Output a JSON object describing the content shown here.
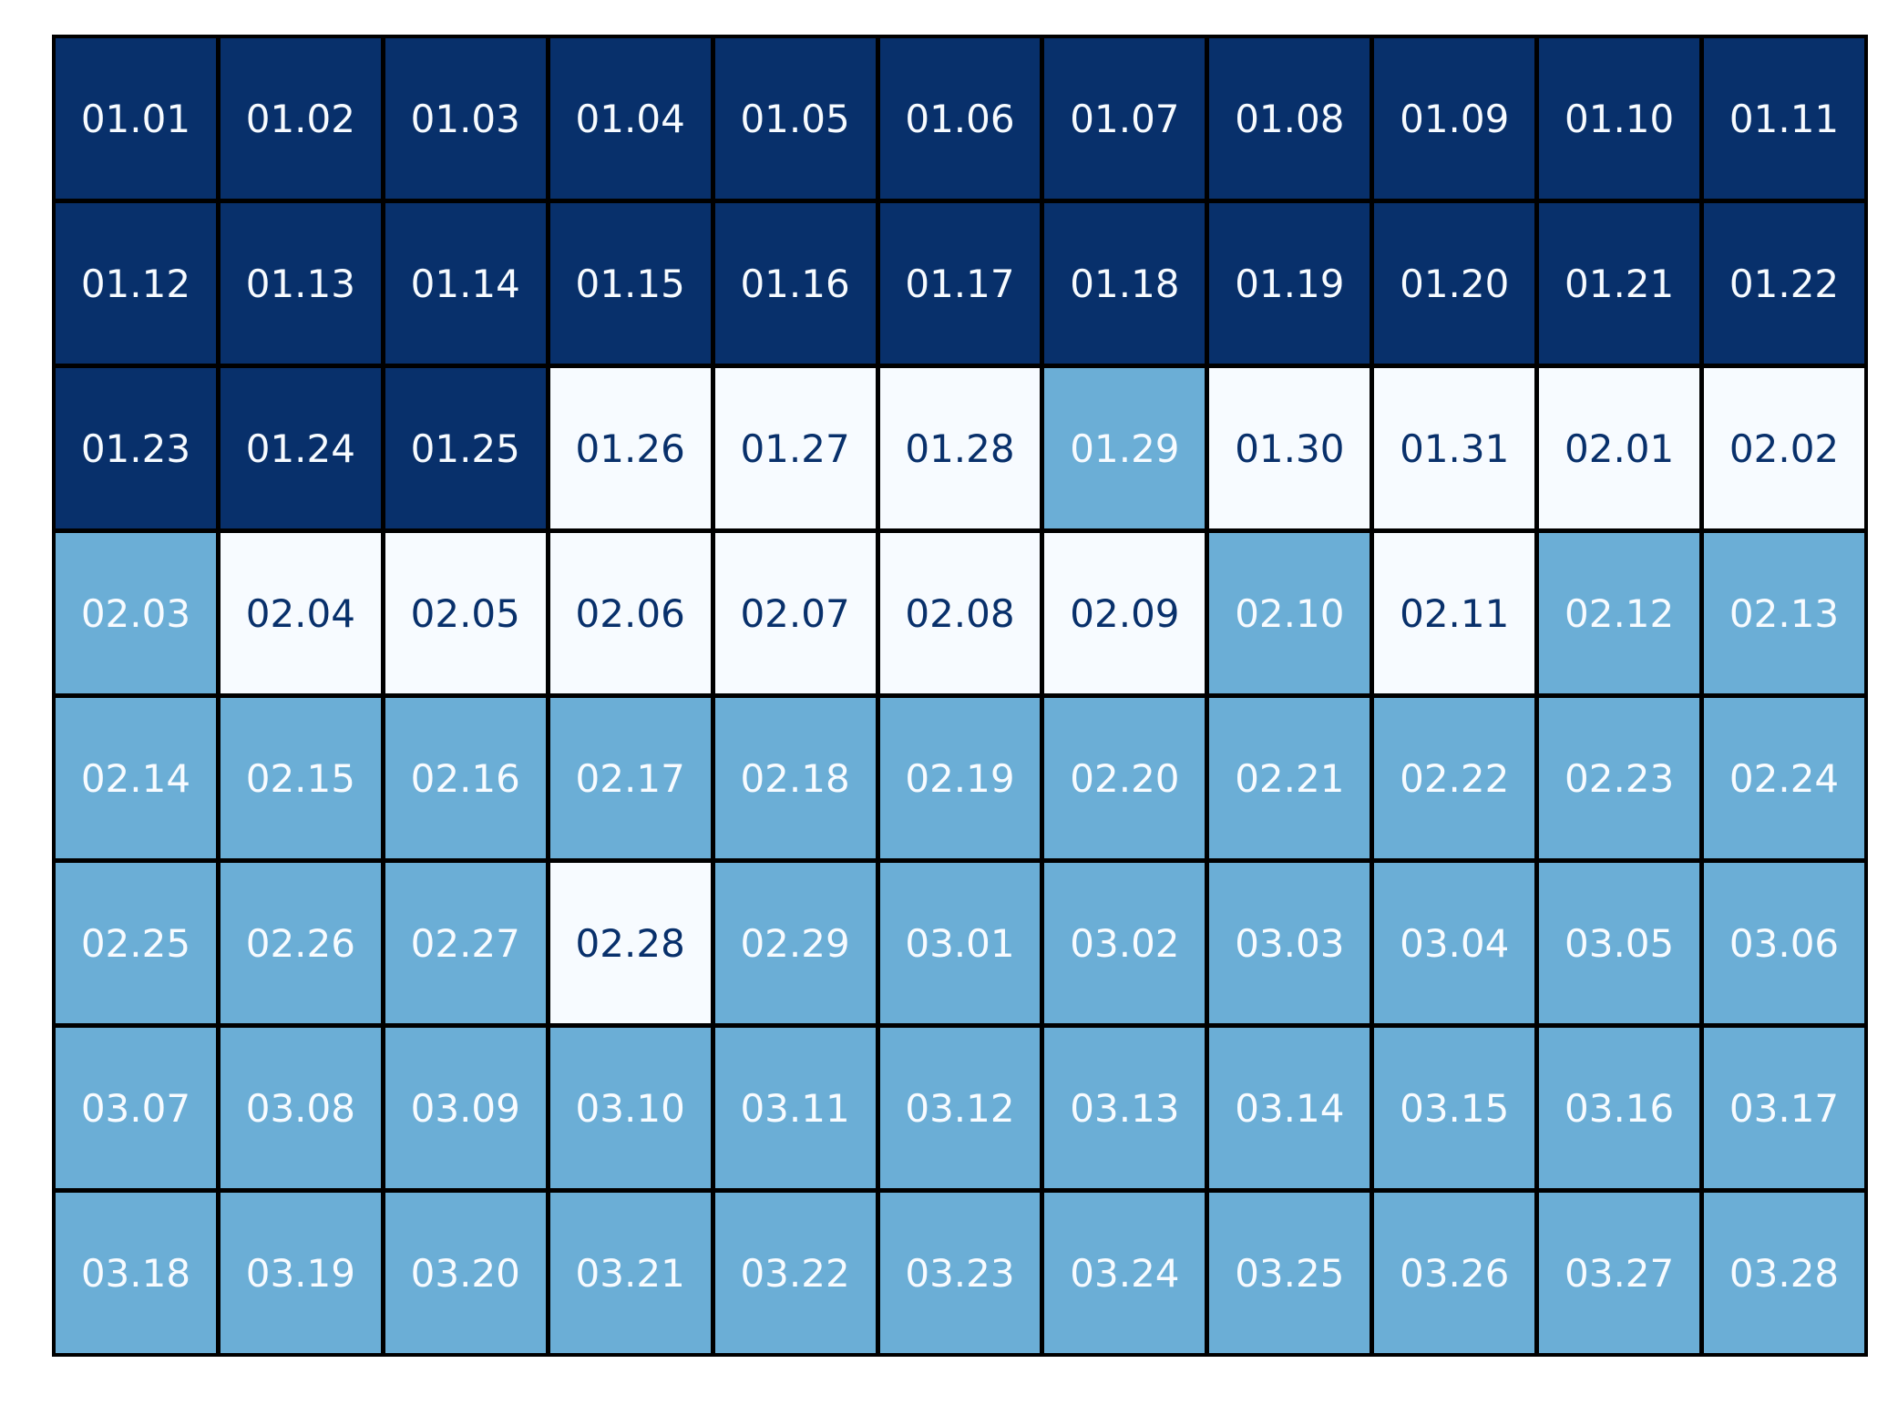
{
  "chart_data": {
    "type": "heatmap",
    "title": "",
    "xlabel": "",
    "ylabel": "",
    "rows": 8,
    "cols": 11,
    "legend": "none",
    "colors": {
      "dark": "#08306b",
      "light": "#f7fbff",
      "mid": "#6baed6",
      "text_on_dark": "#f7fbff",
      "text_on_light": "#08306b"
    },
    "cells": [
      {
        "label": "01.01",
        "level": "dark"
      },
      {
        "label": "01.02",
        "level": "dark"
      },
      {
        "label": "01.03",
        "level": "dark"
      },
      {
        "label": "01.04",
        "level": "dark"
      },
      {
        "label": "01.05",
        "level": "dark"
      },
      {
        "label": "01.06",
        "level": "dark"
      },
      {
        "label": "01.07",
        "level": "dark"
      },
      {
        "label": "01.08",
        "level": "dark"
      },
      {
        "label": "01.09",
        "level": "dark"
      },
      {
        "label": "01.10",
        "level": "dark"
      },
      {
        "label": "01.11",
        "level": "dark"
      },
      {
        "label": "01.12",
        "level": "dark"
      },
      {
        "label": "01.13",
        "level": "dark"
      },
      {
        "label": "01.14",
        "level": "dark"
      },
      {
        "label": "01.15",
        "level": "dark"
      },
      {
        "label": "01.16",
        "level": "dark"
      },
      {
        "label": "01.17",
        "level": "dark"
      },
      {
        "label": "01.18",
        "level": "dark"
      },
      {
        "label": "01.19",
        "level": "dark"
      },
      {
        "label": "01.20",
        "level": "dark"
      },
      {
        "label": "01.21",
        "level": "dark"
      },
      {
        "label": "01.22",
        "level": "dark"
      },
      {
        "label": "01.23",
        "level": "dark"
      },
      {
        "label": "01.24",
        "level": "dark"
      },
      {
        "label": "01.25",
        "level": "dark"
      },
      {
        "label": "01.26",
        "level": "light"
      },
      {
        "label": "01.27",
        "level": "light"
      },
      {
        "label": "01.28",
        "level": "light"
      },
      {
        "label": "01.29",
        "level": "mid"
      },
      {
        "label": "01.30",
        "level": "light"
      },
      {
        "label": "01.31",
        "level": "light"
      },
      {
        "label": "02.01",
        "level": "light"
      },
      {
        "label": "02.02",
        "level": "light"
      },
      {
        "label": "02.03",
        "level": "mid"
      },
      {
        "label": "02.04",
        "level": "light"
      },
      {
        "label": "02.05",
        "level": "light"
      },
      {
        "label": "02.06",
        "level": "light"
      },
      {
        "label": "02.07",
        "level": "light"
      },
      {
        "label": "02.08",
        "level": "light"
      },
      {
        "label": "02.09",
        "level": "light"
      },
      {
        "label": "02.10",
        "level": "mid"
      },
      {
        "label": "02.11",
        "level": "light"
      },
      {
        "label": "02.12",
        "level": "mid"
      },
      {
        "label": "02.13",
        "level": "mid"
      },
      {
        "label": "02.14",
        "level": "mid"
      },
      {
        "label": "02.15",
        "level": "mid"
      },
      {
        "label": "02.16",
        "level": "mid"
      },
      {
        "label": "02.17",
        "level": "mid"
      },
      {
        "label": "02.18",
        "level": "mid"
      },
      {
        "label": "02.19",
        "level": "mid"
      },
      {
        "label": "02.20",
        "level": "mid"
      },
      {
        "label": "02.21",
        "level": "mid"
      },
      {
        "label": "02.22",
        "level": "mid"
      },
      {
        "label": "02.23",
        "level": "mid"
      },
      {
        "label": "02.24",
        "level": "mid"
      },
      {
        "label": "02.25",
        "level": "mid"
      },
      {
        "label": "02.26",
        "level": "mid"
      },
      {
        "label": "02.27",
        "level": "mid"
      },
      {
        "label": "02.28",
        "level": "light"
      },
      {
        "label": "02.29",
        "level": "mid"
      },
      {
        "label": "03.01",
        "level": "mid"
      },
      {
        "label": "03.02",
        "level": "mid"
      },
      {
        "label": "03.03",
        "level": "mid"
      },
      {
        "label": "03.04",
        "level": "mid"
      },
      {
        "label": "03.05",
        "level": "mid"
      },
      {
        "label": "03.06",
        "level": "mid"
      },
      {
        "label": "03.07",
        "level": "mid"
      },
      {
        "label": "03.08",
        "level": "mid"
      },
      {
        "label": "03.09",
        "level": "mid"
      },
      {
        "label": "03.10",
        "level": "mid"
      },
      {
        "label": "03.11",
        "level": "mid"
      },
      {
        "label": "03.12",
        "level": "mid"
      },
      {
        "label": "03.13",
        "level": "mid"
      },
      {
        "label": "03.14",
        "level": "mid"
      },
      {
        "label": "03.15",
        "level": "mid"
      },
      {
        "label": "03.16",
        "level": "mid"
      },
      {
        "label": "03.17",
        "level": "mid"
      },
      {
        "label": "03.18",
        "level": "mid"
      },
      {
        "label": "03.19",
        "level": "mid"
      },
      {
        "label": "03.20",
        "level": "mid"
      },
      {
        "label": "03.21",
        "level": "mid"
      },
      {
        "label": "03.22",
        "level": "mid"
      },
      {
        "label": "03.23",
        "level": "mid"
      },
      {
        "label": "03.24",
        "level": "mid"
      },
      {
        "label": "03.25",
        "level": "mid"
      },
      {
        "label": "03.26",
        "level": "mid"
      },
      {
        "label": "03.27",
        "level": "mid"
      },
      {
        "label": "03.28",
        "level": "mid"
      }
    ]
  }
}
